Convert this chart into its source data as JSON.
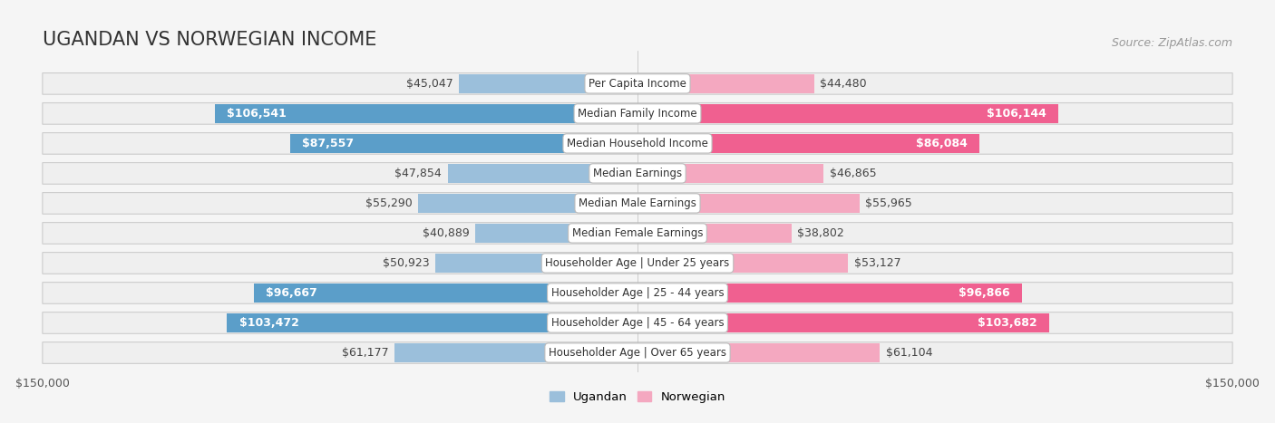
{
  "title": "UGANDAN VS NORWEGIAN INCOME",
  "source": "Source: ZipAtlas.com",
  "categories": [
    "Per Capita Income",
    "Median Family Income",
    "Median Household Income",
    "Median Earnings",
    "Median Male Earnings",
    "Median Female Earnings",
    "Householder Age | Under 25 years",
    "Householder Age | 25 - 44 years",
    "Householder Age | 45 - 64 years",
    "Householder Age | Over 65 years"
  ],
  "ugandan_values": [
    45047,
    106541,
    87557,
    47854,
    55290,
    40889,
    50923,
    96667,
    103472,
    61177
  ],
  "norwegian_values": [
    44480,
    106144,
    86084,
    46865,
    55965,
    38802,
    53127,
    96866,
    103682,
    61104
  ],
  "ugandan_labels": [
    "$45,047",
    "$106,541",
    "$87,557",
    "$47,854",
    "$55,290",
    "$40,889",
    "$50,923",
    "$96,667",
    "$103,472",
    "$61,177"
  ],
  "norwegian_labels": [
    "$44,480",
    "$106,144",
    "$86,084",
    "$46,865",
    "$55,965",
    "$38,802",
    "$53,127",
    "$96,866",
    "$103,682",
    "$61,104"
  ],
  "max_value": 150000,
  "ugandan_color_light": "#9BBFDB",
  "ugandan_color_dark": "#5B9EC9",
  "norwegian_color_light": "#F4A8C0",
  "norwegian_color_dark": "#F06090",
  "background_color": "#F5F5F5",
  "row_bg_light": "#F0F0F0",
  "row_bg_dark": "#E8E8E8",
  "title_fontsize": 15,
  "source_fontsize": 9,
  "bar_label_fontsize": 9,
  "category_fontsize": 8.5,
  "axis_fontsize": 9,
  "large_threshold": 70000
}
